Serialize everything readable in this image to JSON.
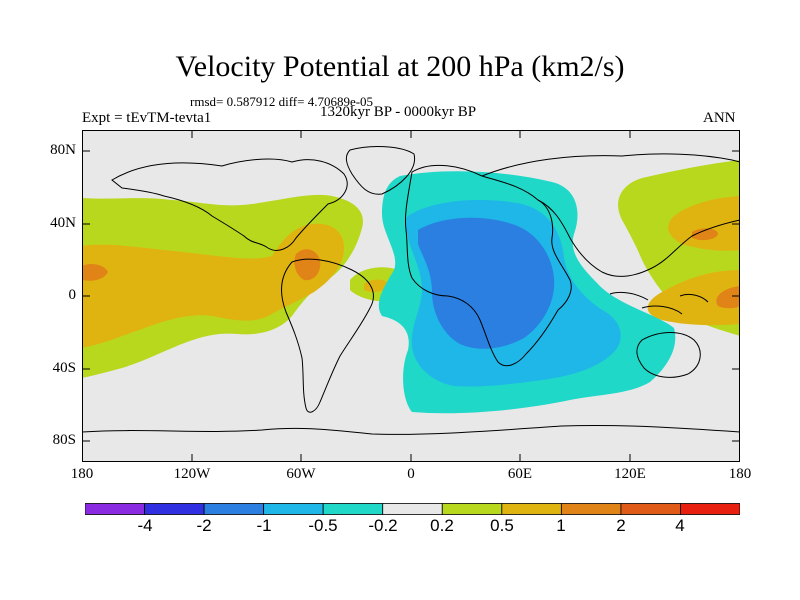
{
  "title": "Velocity Potential at 200 hPa (km2/s)",
  "stats": "rmsd= 0.587912 diff= 4.70689e-05",
  "experiment": "Expt = tEvTM-tevta1",
  "period": "1320kyr BP - 0000kyr BP",
  "season": "ANN",
  "lat_labels": [
    "80N",
    "40N",
    "0",
    "40S",
    "80S"
  ],
  "lon_labels": [
    "180",
    "120W",
    "60W",
    "0",
    "60E",
    "120E",
    "180"
  ],
  "colorbar": {
    "labels": [
      "-4",
      "-2",
      "-1",
      "-0.5",
      "-0.2",
      "0.2",
      "0.5",
      "1",
      "2",
      "4"
    ],
    "colors": [
      "#8a2be2",
      "#3030e0",
      "#2a7fe0",
      "#1fb6e8",
      "#1fd8c8",
      "#e8e8e8",
      "#b8d81e",
      "#e0b410",
      "#e08418",
      "#e05a18",
      "#e82010"
    ]
  },
  "map_fill": {
    "neutral": "#e8e8e8",
    "pos1": "#b8d81e",
    "pos2": "#e0b410",
    "pos3": "#e08418",
    "neg1": "#1fd8c8",
    "neg2": "#1fb6e8",
    "neg3": "#2a7fe0"
  }
}
